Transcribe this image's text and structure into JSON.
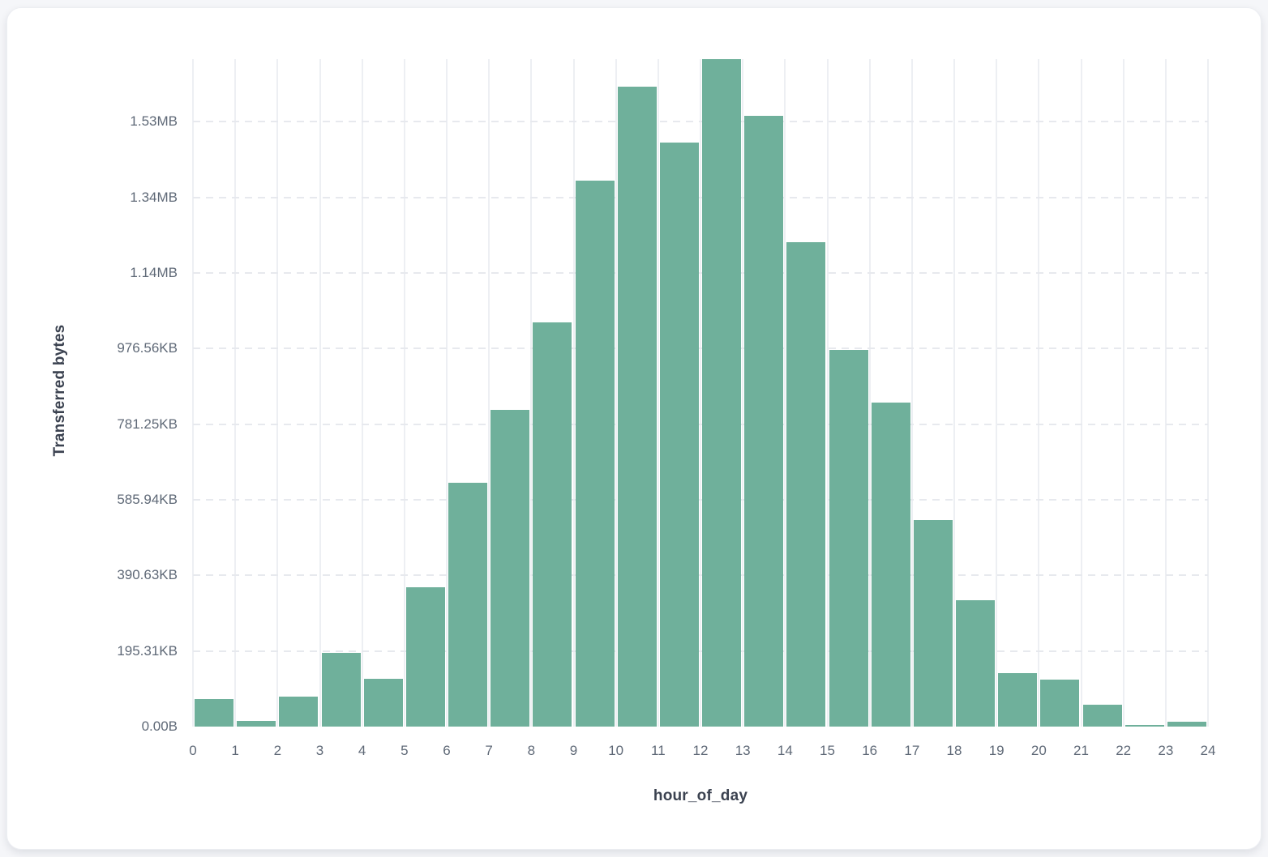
{
  "page": {
    "background_color": "#f5f6f9",
    "card_color": "#ffffff"
  },
  "chart_data": {
    "type": "bar",
    "title": "",
    "xlabel": "hour_of_day",
    "ylabel": "Transferred bytes",
    "legend": "none",
    "grid": {
      "vertical": "solid",
      "horizontal": "dashed"
    },
    "bar_color": "#6fb09b",
    "x_tick_labels": [
      "0",
      "1",
      "2",
      "3",
      "4",
      "5",
      "6",
      "7",
      "8",
      "9",
      "10",
      "11",
      "12",
      "13",
      "14",
      "15",
      "16",
      "17",
      "18",
      "19",
      "20",
      "21",
      "22",
      "23",
      "24"
    ],
    "y_ticks": [
      {
        "label": "0.00B",
        "bytes": 0
      },
      {
        "label": "195.31KB",
        "bytes": 200000
      },
      {
        "label": "390.63KB",
        "bytes": 400000
      },
      {
        "label": "585.94KB",
        "bytes": 600000
      },
      {
        "label": "781.25KB",
        "bytes": 800000
      },
      {
        "label": "976.56KB",
        "bytes": 1000000
      },
      {
        "label": "1.14MB",
        "bytes": 1200000
      },
      {
        "label": "1.34MB",
        "bytes": 1400000
      },
      {
        "label": "1.53MB",
        "bytes": 1600000
      }
    ],
    "ylim_bytes": [
      0,
      1766000
    ],
    "categories_hour": [
      0,
      1,
      2,
      3,
      4,
      5,
      6,
      7,
      8,
      9,
      10,
      11,
      12,
      13,
      14,
      15,
      16,
      17,
      18,
      19,
      20,
      21,
      22,
      23
    ],
    "values_bytes": [
      72000,
      14000,
      79000,
      196000,
      126000,
      368000,
      645000,
      838000,
      1070000,
      1444000,
      1693000,
      1546000,
      1766000,
      1615000,
      1281000,
      997000,
      857000,
      546000,
      334000,
      141000,
      125000,
      58000,
      5000,
      13000
    ]
  }
}
